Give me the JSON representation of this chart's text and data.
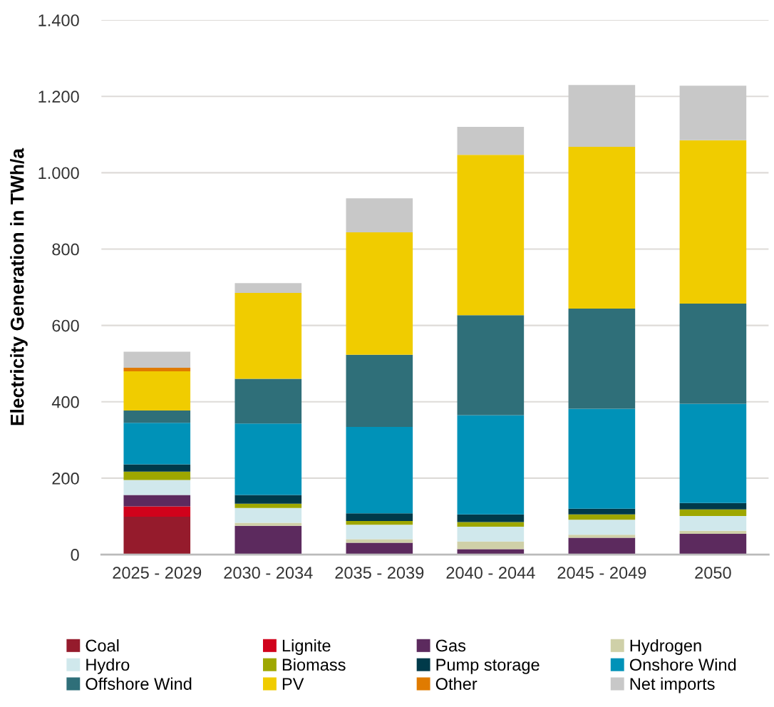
{
  "chart_data": {
    "type": "bar",
    "stacked": true,
    "ylabel": "Electricity Generation in TWh/a",
    "categories": [
      "2025 - 2029",
      "2030 - 2034",
      "2035 - 2039",
      "2040 - 2044",
      "2045 - 2049",
      "2050"
    ],
    "ylim": [
      0,
      1400
    ],
    "yticks": [
      0,
      200,
      400,
      600,
      800,
      {
        "value": 1000,
        "label": "1.000"
      },
      {
        "value": 1200,
        "label": "1.200"
      },
      {
        "value": 1400,
        "label": "1.400"
      }
    ],
    "grid": "y",
    "legend": "bottom",
    "series": [
      {
        "name": "Coal",
        "color": "#951b2c",
        "values": [
          99,
          0,
          0,
          0,
          0,
          0
        ]
      },
      {
        "name": "Lignite",
        "color": "#d0021b",
        "values": [
          27,
          0,
          0,
          0,
          0,
          0
        ]
      },
      {
        "name": "Gas",
        "color": "#5c2a5e",
        "values": [
          30,
          75,
          31,
          14,
          44,
          54
        ]
      },
      {
        "name": "Hydrogen",
        "color": "#cfd0a8",
        "values": [
          0,
          8,
          9,
          20,
          8,
          8
        ]
      },
      {
        "name": "Hydro",
        "color": "#d0e8ec",
        "values": [
          39,
          39,
          38,
          39,
          39,
          39
        ]
      },
      {
        "name": "Biomass",
        "color": "#9ea700",
        "values": [
          22,
          11,
          10,
          12,
          14,
          17
        ]
      },
      {
        "name": "Pump storage",
        "color": "#003a4a",
        "values": [
          19,
          23,
          20,
          20,
          15,
          17
        ]
      },
      {
        "name": "Onshore Wind",
        "color": "#0092b8",
        "values": [
          109,
          187,
          226,
          260,
          262,
          260
        ]
      },
      {
        "name": "Offshore Wind",
        "color": "#2f6f79",
        "values": [
          32,
          117,
          189,
          262,
          262,
          262
        ]
      },
      {
        "name": "PV",
        "color": "#f0cc00",
        "values": [
          103,
          225,
          321,
          420,
          424,
          428
        ]
      },
      {
        "name": "Other",
        "color": "#e07b00",
        "values": [
          9,
          0,
          0,
          0,
          0,
          0
        ]
      },
      {
        "name": "Net imports",
        "color": "#c8c8c8",
        "values": [
          42,
          26,
          89,
          73,
          162,
          143
        ]
      }
    ]
  }
}
